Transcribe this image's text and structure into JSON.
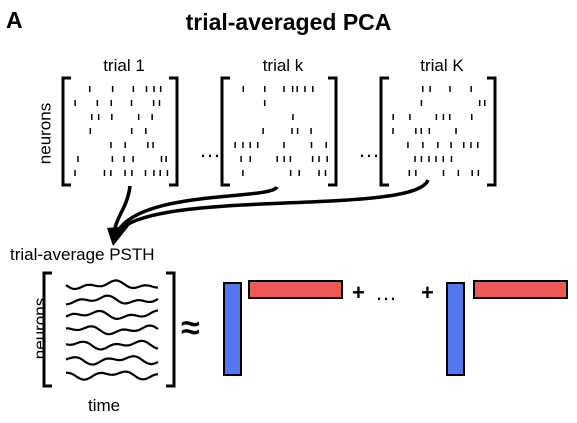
{
  "panel_label": "A",
  "title": "trial-averaged PCA",
  "trials": [
    {
      "label": "trial 1"
    },
    {
      "label": "trial k"
    },
    {
      "label": "trial K"
    }
  ],
  "ellipsis": "…",
  "neurons_label": "neurons",
  "psth_title": "trial-average PSTH",
  "time_label": "time",
  "approx_symbol": "≈",
  "plus_symbol": "+",
  "colors": {
    "loading_bar": "#5577ee",
    "component_bar": "#ee5a5a",
    "ink": "#000000"
  }
}
